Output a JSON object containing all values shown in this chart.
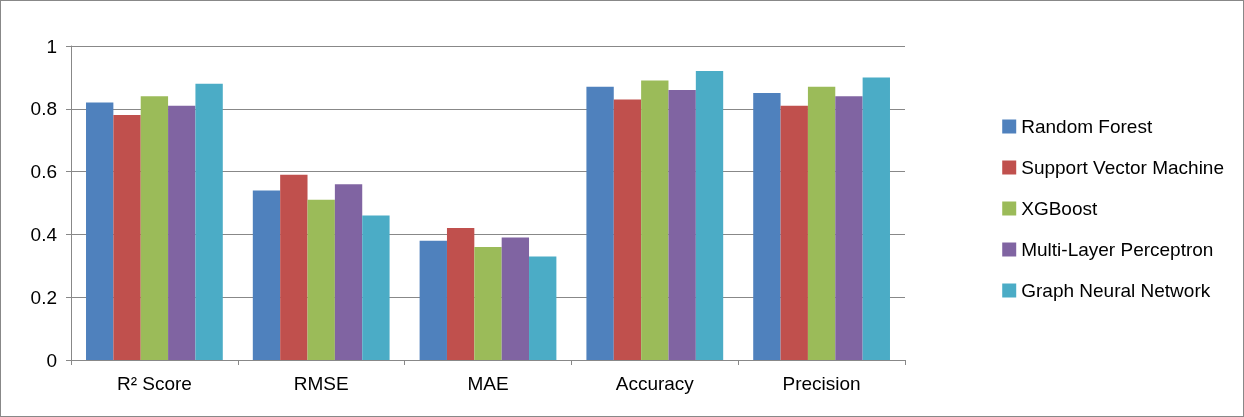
{
  "chart_data": {
    "type": "bar",
    "categories": [
      "R² Score",
      "RMSE",
      "MAE",
      "Accuracy",
      "Precision"
    ],
    "series": [
      {
        "name": "Random Forest",
        "color": "#4f81bd",
        "values": [
          0.82,
          0.54,
          0.38,
          0.87,
          0.85
        ]
      },
      {
        "name": "Support Vector Machine",
        "color": "#c0504d",
        "values": [
          0.78,
          0.59,
          0.42,
          0.83,
          0.81
        ]
      },
      {
        "name": "XGBoost",
        "color": "#9bbb59",
        "values": [
          0.84,
          0.51,
          0.36,
          0.89,
          0.87
        ]
      },
      {
        "name": "Multi-Layer Perceptron",
        "color": "#8064a2",
        "values": [
          0.81,
          0.56,
          0.39,
          0.86,
          0.84
        ]
      },
      {
        "name": "Graph Neural Network",
        "color": "#4bacc6",
        "values": [
          0.88,
          0.46,
          0.33,
          0.92,
          0.9
        ]
      }
    ],
    "ylim": [
      0,
      1
    ],
    "yticks": [
      0,
      0.2,
      0.4,
      0.6,
      0.8,
      1
    ],
    "grid": "y",
    "legend": "right"
  }
}
